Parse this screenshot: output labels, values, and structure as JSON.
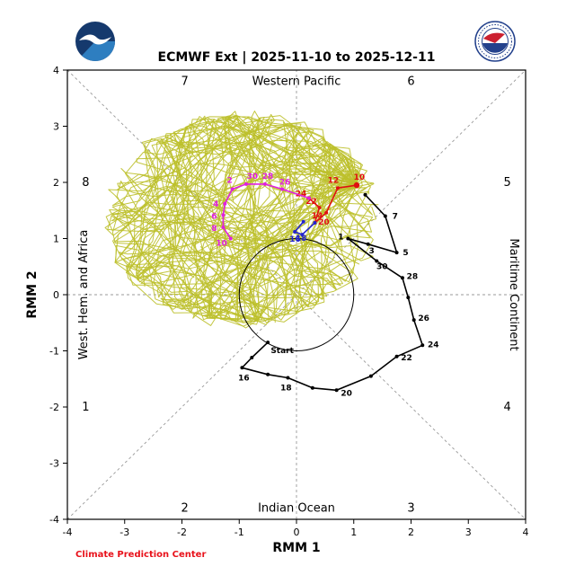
{
  "header": {
    "title": "ECMWF Ext | 2025-11-10 to 2025-12-11",
    "logos": {
      "left": "noaa-logo",
      "right": "nws-logo"
    }
  },
  "footer": {
    "credit": "Climate Prediction Center"
  },
  "chart_data": {
    "type": "line",
    "title": "ECMWF Ext | 2025-11-10 to 2025-12-11",
    "xlabel": "RMM 1",
    "ylabel": "RMM 2",
    "xlim": [
      -4,
      4
    ],
    "ylim": [
      -4,
      4
    ],
    "ticks": [
      -4,
      -3,
      -2,
      -1,
      0,
      1,
      2,
      3,
      4
    ],
    "unit_circle_radius": 1,
    "grid": "dashed diagonals and center cross",
    "colors": {
      "ensemble": "#bdc02b",
      "observed": "#000000",
      "forecast_red": "#e01010",
      "forecast_blue": "#2424cc",
      "forecast_magenta": "#e020e0",
      "guides": "#999999",
      "credit": "#e8111a"
    },
    "phase_labels": [
      {
        "label": "1",
        "x": -3.68,
        "y": -2.0
      },
      {
        "label": "2",
        "x": -1.95,
        "y": -3.8
      },
      {
        "label": "3",
        "x": 2.0,
        "y": -3.8
      },
      {
        "label": "4",
        "x": 3.68,
        "y": -2.0
      },
      {
        "label": "5",
        "x": 3.68,
        "y": 2.0
      },
      {
        "label": "6",
        "x": 2.0,
        "y": 3.8
      },
      {
        "label": "7",
        "x": -1.95,
        "y": 3.8
      },
      {
        "label": "8",
        "x": -3.68,
        "y": 2.0
      }
    ],
    "region_labels": {
      "top": "Western Pacific",
      "bottom": "Indian Ocean",
      "left": "West. Hem. and Africa",
      "right": "Maritime Continent"
    },
    "series": [
      {
        "name": "observed-rmm",
        "color": "#000000",
        "points": [
          {
            "x": -0.5,
            "y": -0.85,
            "label": "Start",
            "dx": 16,
            "dy": 12
          },
          {
            "x": -0.78,
            "y": -1.12
          },
          {
            "x": -0.95,
            "y": -1.3,
            "label": "16",
            "dx": 2,
            "dy": 14
          },
          {
            "x": -0.5,
            "y": -1.42
          },
          {
            "x": -0.15,
            "y": -1.48,
            "label": "18",
            "dx": -2,
            "dy": 14
          },
          {
            "x": 0.28,
            "y": -1.66
          },
          {
            "x": 0.7,
            "y": -1.7,
            "label": "20",
            "dx": 11,
            "dy": 6
          },
          {
            "x": 1.3,
            "y": -1.45
          },
          {
            "x": 1.75,
            "y": -1.1,
            "label": "22",
            "dx": 11,
            "dy": 4
          },
          {
            "x": 2.2,
            "y": -0.9,
            "label": "24",
            "dx": 12,
            "dy": 2
          },
          {
            "x": 2.05,
            "y": -0.45,
            "label": "26",
            "dx": 11,
            "dy": 1
          },
          {
            "x": 1.95,
            "y": -0.05
          },
          {
            "x": 1.85,
            "y": 0.3,
            "label": "28",
            "dx": 11,
            "dy": 1
          },
          {
            "x": 1.4,
            "y": 0.6,
            "label": "30",
            "dx": 6,
            "dy": 9
          },
          {
            "x": 0.9,
            "y": 1.0,
            "label": "1",
            "dx": -8,
            "dy": 1
          },
          {
            "x": 1.25,
            "y": 0.9,
            "label": "3",
            "dx": 4,
            "dy": 10
          },
          {
            "x": 1.75,
            "y": 0.75,
            "label": "5",
            "dx": 10,
            "dy": 3
          },
          {
            "x": 1.55,
            "y": 1.4,
            "label": "7",
            "dx": 11,
            "dy": 3
          },
          {
            "x": 1.2,
            "y": 1.78
          }
        ]
      },
      {
        "name": "forecast-red",
        "color": "#e01010",
        "points": [
          {
            "x": 1.05,
            "y": 1.95,
            "label": "10",
            "dx": 3,
            "dy": -6,
            "big": true
          },
          {
            "x": 0.72,
            "y": 1.9,
            "label": "12",
            "dx": -5,
            "dy": -6
          },
          {
            "x": 0.52,
            "y": 1.46,
            "label": "14",
            "dx": -10,
            "dy": 6
          },
          {
            "x": 0.32,
            "y": 1.28,
            "label": "20",
            "dx": 10,
            "dy": 2
          },
          {
            "x": 0.4,
            "y": 1.55,
            "label": "22",
            "dx": -9,
            "dy": 0
          },
          {
            "x": 0.22,
            "y": 1.72,
            "label": "24",
            "dx": -9,
            "dy": -2
          }
        ]
      },
      {
        "name": "forecast-blue",
        "color": "#2424cc",
        "points": [
          {
            "x": 0.32,
            "y": 1.28
          },
          {
            "x": 0.1,
            "y": 1.07,
            "label": "16",
            "dx": -8,
            "dy": 8
          },
          {
            "x": -0.03,
            "y": 1.12,
            "label": "18",
            "dx": 7,
            "dy": 10
          },
          {
            "x": 0.12,
            "y": 1.3
          }
        ]
      },
      {
        "name": "forecast-magenta",
        "color": "#e020e0",
        "points": [
          {
            "x": 0.22,
            "y": 1.72
          },
          {
            "x": -0.25,
            "y": 1.88,
            "label": "26",
            "dx": 3,
            "dy": -5
          },
          {
            "x": -0.55,
            "y": 1.97,
            "label": "28",
            "dx": 3,
            "dy": -6
          },
          {
            "x": -0.88,
            "y": 1.97,
            "label": "30",
            "dx": 7,
            "dy": -6
          },
          {
            "x": -1.12,
            "y": 1.88,
            "label": "2",
            "dx": -3,
            "dy": -7
          },
          {
            "x": -1.25,
            "y": 1.62,
            "label": "4",
            "dx": -10,
            "dy": 3
          },
          {
            "x": -1.28,
            "y": 1.42,
            "label": "6",
            "dx": -10,
            "dy": 4
          },
          {
            "x": -1.28,
            "y": 1.2,
            "label": "8",
            "dx": -10,
            "dy": 4
          },
          {
            "x": -1.15,
            "y": 1.0,
            "label": "10",
            "dx": -10,
            "dy": 8
          }
        ]
      }
    ],
    "ensemble": {
      "name": "ecmwf-ensemble-members",
      "color": "#bdc02b",
      "members": 52,
      "steps": 31,
      "seed": 12,
      "start": {
        "x": 1.05,
        "y": 1.95
      },
      "center": {
        "x": -0.95,
        "y": 1.35
      },
      "rx": 2.45,
      "ry": 1.95
    }
  }
}
